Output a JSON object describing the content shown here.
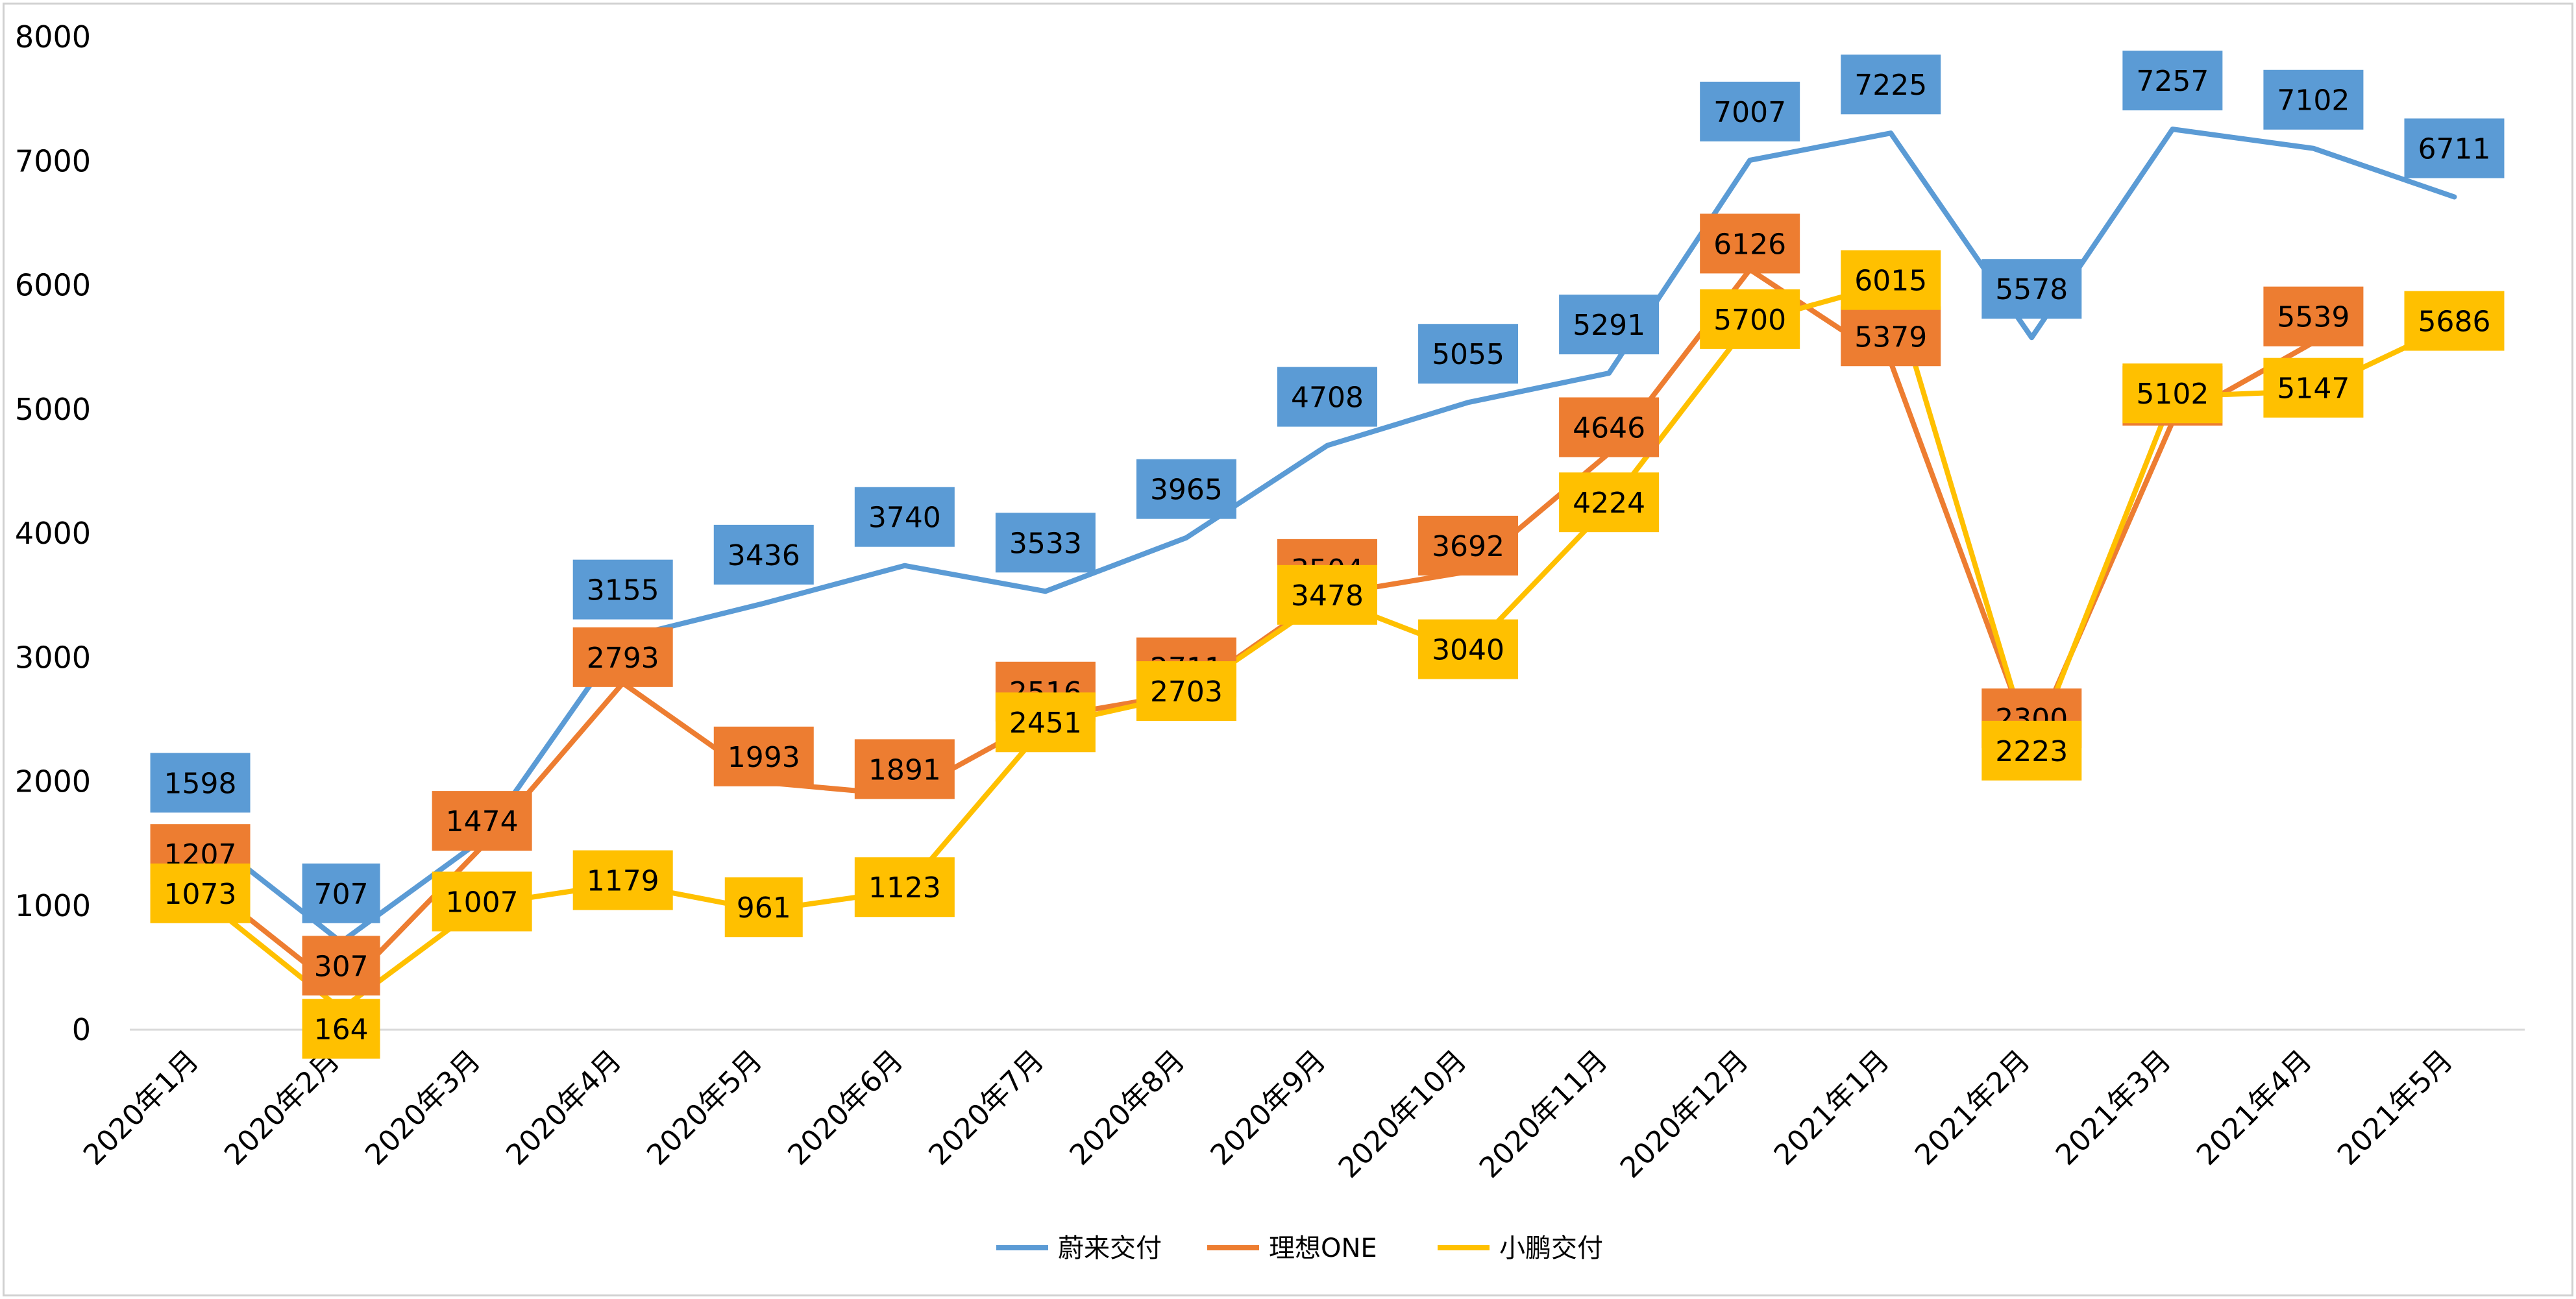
{
  "chart_data": {
    "type": "line",
    "title": "",
    "xlabel": "",
    "ylabel": "",
    "ylim": [
      0,
      8000
    ],
    "yticks": [
      "0",
      "1000",
      "2000",
      "3000",
      "4000",
      "5000",
      "6000",
      "7000",
      "8000"
    ],
    "categories": [
      "2020年1月",
      "2020年2月",
      "2020年3月",
      "2020年4月",
      "2020年5月",
      "2020年6月",
      "2020年7月",
      "2020年8月",
      "2020年9月",
      "2020年10月",
      "2020年11月",
      "2020年12月",
      "2021年1月",
      "2021年2月",
      "2021年3月",
      "2021年4月",
      "2021年5月"
    ],
    "series": [
      {
        "name": "蔚来交付",
        "color": "#5B9BD5",
        "values": [
          1598,
          707,
          1533,
          3155,
          3436,
          3740,
          3533,
          3965,
          4708,
          5055,
          5291,
          7007,
          7225,
          5578,
          7257,
          7102,
          6711
        ],
        "labels": [
          "1598",
          "707",
          "",
          "3155",
          "3436",
          "3740",
          "3533",
          "3965",
          "4708",
          "5055",
          "5291",
          "7007",
          "7225",
          "5578",
          "7257",
          "7102",
          "6711"
        ]
      },
      {
        "name": "理想ONE",
        "color": "#ED7D31",
        "values": [
          1207,
          307,
          1474,
          2793,
          1993,
          1891,
          2516,
          2711,
          3504,
          3692,
          4646,
          6126,
          5379,
          2300,
          4900,
          5539,
          null
        ],
        "labels": [
          "1207",
          "307",
          "1474",
          "2793",
          "1993",
          "1891",
          "2516",
          "2711",
          "3504",
          "3692",
          "4646",
          "6126",
          "5379",
          "2300",
          "4900",
          "5539",
          ""
        ]
      },
      {
        "name": "小鹏交付",
        "color": "#FFC000",
        "values": [
          1073,
          164,
          1007,
          1179,
          961,
          1123,
          2451,
          2703,
          3478,
          3040,
          4224,
          5700,
          6015,
          2223,
          5102,
          5147,
          5686
        ],
        "labels": [
          "1073",
          "164",
          "1007",
          "1179",
          "961",
          "1123",
          "2451",
          "2703",
          "3478",
          "3040",
          "4224",
          "5700",
          "6015",
          "2223",
          "5102",
          "5147",
          "5686"
        ]
      }
    ],
    "grid": false,
    "legend_position": "bottom"
  }
}
